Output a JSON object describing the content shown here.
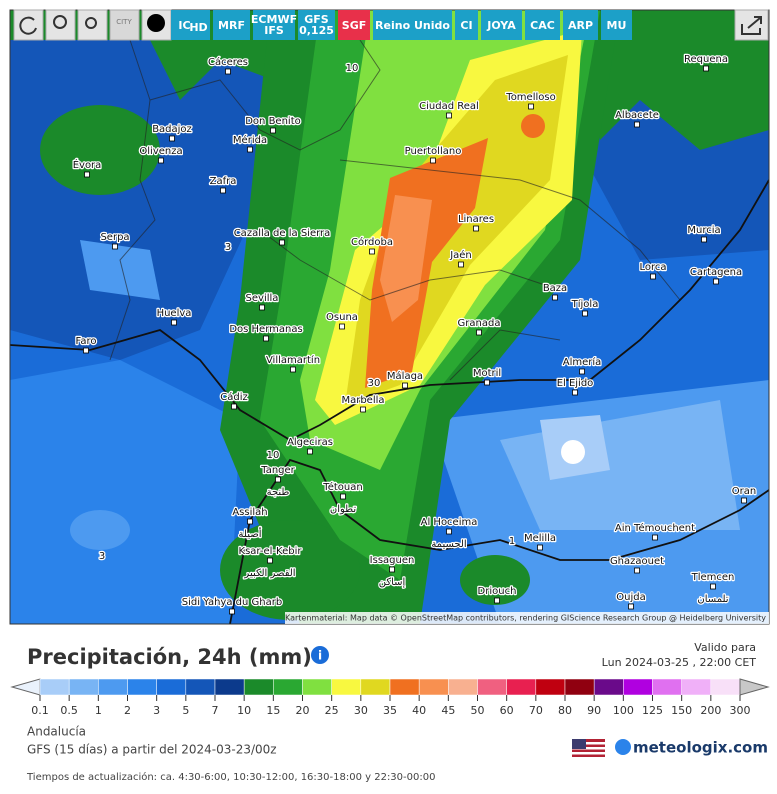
{
  "toolbar": {
    "city_icon": "CITY",
    "models": [
      {
        "lines": [
          "IC"
        ],
        "sub": "HD"
      },
      {
        "lines": [
          "MRF"
        ]
      },
      {
        "lines": [
          "ECMWF",
          "IFS"
        ]
      },
      {
        "lines": [
          "GFS",
          "0,125"
        ]
      },
      {
        "lines": [
          "SGF"
        ]
      },
      {
        "lines": [
          "Reino Unido"
        ]
      },
      {
        "lines": [
          "CI"
        ]
      },
      {
        "lines": [
          "JOYA"
        ]
      },
      {
        "lines": [
          "CAC"
        ]
      },
      {
        "lines": [
          "ARP"
        ]
      },
      {
        "lines": [
          "MU"
        ]
      }
    ]
  },
  "map": {
    "cities": [
      {
        "name": "Cáceres"
      },
      {
        "name": "Requena"
      },
      {
        "name": "Badajoz"
      },
      {
        "name": "Don Benito"
      },
      {
        "name": "Mérida"
      },
      {
        "name": "Ciudad Real"
      },
      {
        "name": "Tomelloso"
      },
      {
        "name": "Albacete"
      },
      {
        "name": "Évora"
      },
      {
        "name": "Olivenza"
      },
      {
        "name": "Zafra"
      },
      {
        "name": "Puertollano"
      },
      {
        "name": "Linares"
      },
      {
        "name": "Murcia"
      },
      {
        "name": "Serpa"
      },
      {
        "name": "Cazalla de la Sierra"
      },
      {
        "name": "Córdoba"
      },
      {
        "name": "Jaén"
      },
      {
        "name": "Lorca"
      },
      {
        "name": "Cartagena"
      },
      {
        "name": "Huelva"
      },
      {
        "name": "Sevilla"
      },
      {
        "name": "Osuna"
      },
      {
        "name": "Baza"
      },
      {
        "name": "Tíjola"
      },
      {
        "name": "Dos Hermanas"
      },
      {
        "name": "Granada"
      },
      {
        "name": "Faro"
      },
      {
        "name": "Villamartín"
      },
      {
        "name": "Almería"
      },
      {
        "name": "Motril"
      },
      {
        "name": "Málaga"
      },
      {
        "name": "El Ejido"
      },
      {
        "name": "Cádiz"
      },
      {
        "name": "Marbella"
      },
      {
        "name": "Algeciras"
      },
      {
        "name": "Tanger",
        "alt": "طنجة"
      },
      {
        "name": "Tétouan",
        "alt": "تطوان"
      },
      {
        "name": "Assilah",
        "alt": "أصيلة"
      },
      {
        "name": "Al Hoceima",
        "alt": "الحسيمة"
      },
      {
        "name": "Ain Témouchent"
      },
      {
        "name": "Melilla"
      },
      {
        "name": "Ksar-el-Kebir",
        "alt": "القصر الكبير"
      },
      {
        "name": "Issaguen",
        "alt": "إساكن"
      },
      {
        "name": "Ghazaouet"
      },
      {
        "name": "Tlemcen",
        "alt": "تلمسان"
      },
      {
        "name": "Driouch"
      },
      {
        "name": "Oujda"
      },
      {
        "name": "Sidi Yahya du Gharb"
      },
      {
        "name": "Oran"
      }
    ],
    "contour_labels": [
      "10",
      "3",
      "30",
      "10",
      "1",
      "3"
    ],
    "attribution": "Kartenmaterial: Map data © OpenStreetMap contributors, rendering GIScience Research Group @ Heidelberg University"
  },
  "legend": {
    "title": "Precipitación, 24h (mm)",
    "valid_label": "Valido para",
    "valid_time": "Lun 2024-03-25 , 22:00 CET",
    "steps": [
      {
        "value": 0.1,
        "color": "#a8cdf8"
      },
      {
        "value": 0.5,
        "color": "#78b4f4"
      },
      {
        "value": 1,
        "color": "#4d9af0"
      },
      {
        "value": 2,
        "color": "#2b83ea"
      },
      {
        "value": 3,
        "color": "#1a6cd8"
      },
      {
        "value": 5,
        "color": "#1456b8"
      },
      {
        "value": 7,
        "color": "#0c3a8c"
      },
      {
        "value": 10,
        "color": "#1b8a2a"
      },
      {
        "value": 15,
        "color": "#2aa832"
      },
      {
        "value": 20,
        "color": "#80e040"
      },
      {
        "value": 25,
        "color": "#f8f840"
      },
      {
        "value": 30,
        "color": "#e0d820"
      },
      {
        "value": 35,
        "color": "#f07020"
      },
      {
        "value": 40,
        "color": "#f89050"
      },
      {
        "value": 45,
        "color": "#f8b090"
      },
      {
        "value": 50,
        "color": "#f06080"
      },
      {
        "value": 60,
        "color": "#e82050"
      },
      {
        "value": 70,
        "color": "#c00010"
      },
      {
        "value": 80,
        "color": "#900010"
      },
      {
        "value": 90,
        "color": "#6a0a8a"
      },
      {
        "value": 100,
        "color": "#b000e0"
      },
      {
        "value": 125,
        "color": "#e070f0"
      },
      {
        "value": 150,
        "color": "#f0b0f8"
      },
      {
        "value": 200,
        "color": "#f8e0f8"
      },
      {
        "value": 300,
        "color": "#c8c8c8"
      }
    ]
  },
  "footer": {
    "region": "Andalucía",
    "run": "GFS (15 días) a partir del 2024-03-23/00z",
    "brand": "meteologix.com",
    "update_times": "Tiempos de actualización: ca. 4:30-6:00, 10:30-12:00, 16:30-18:00 y 22:30-00:00"
  }
}
